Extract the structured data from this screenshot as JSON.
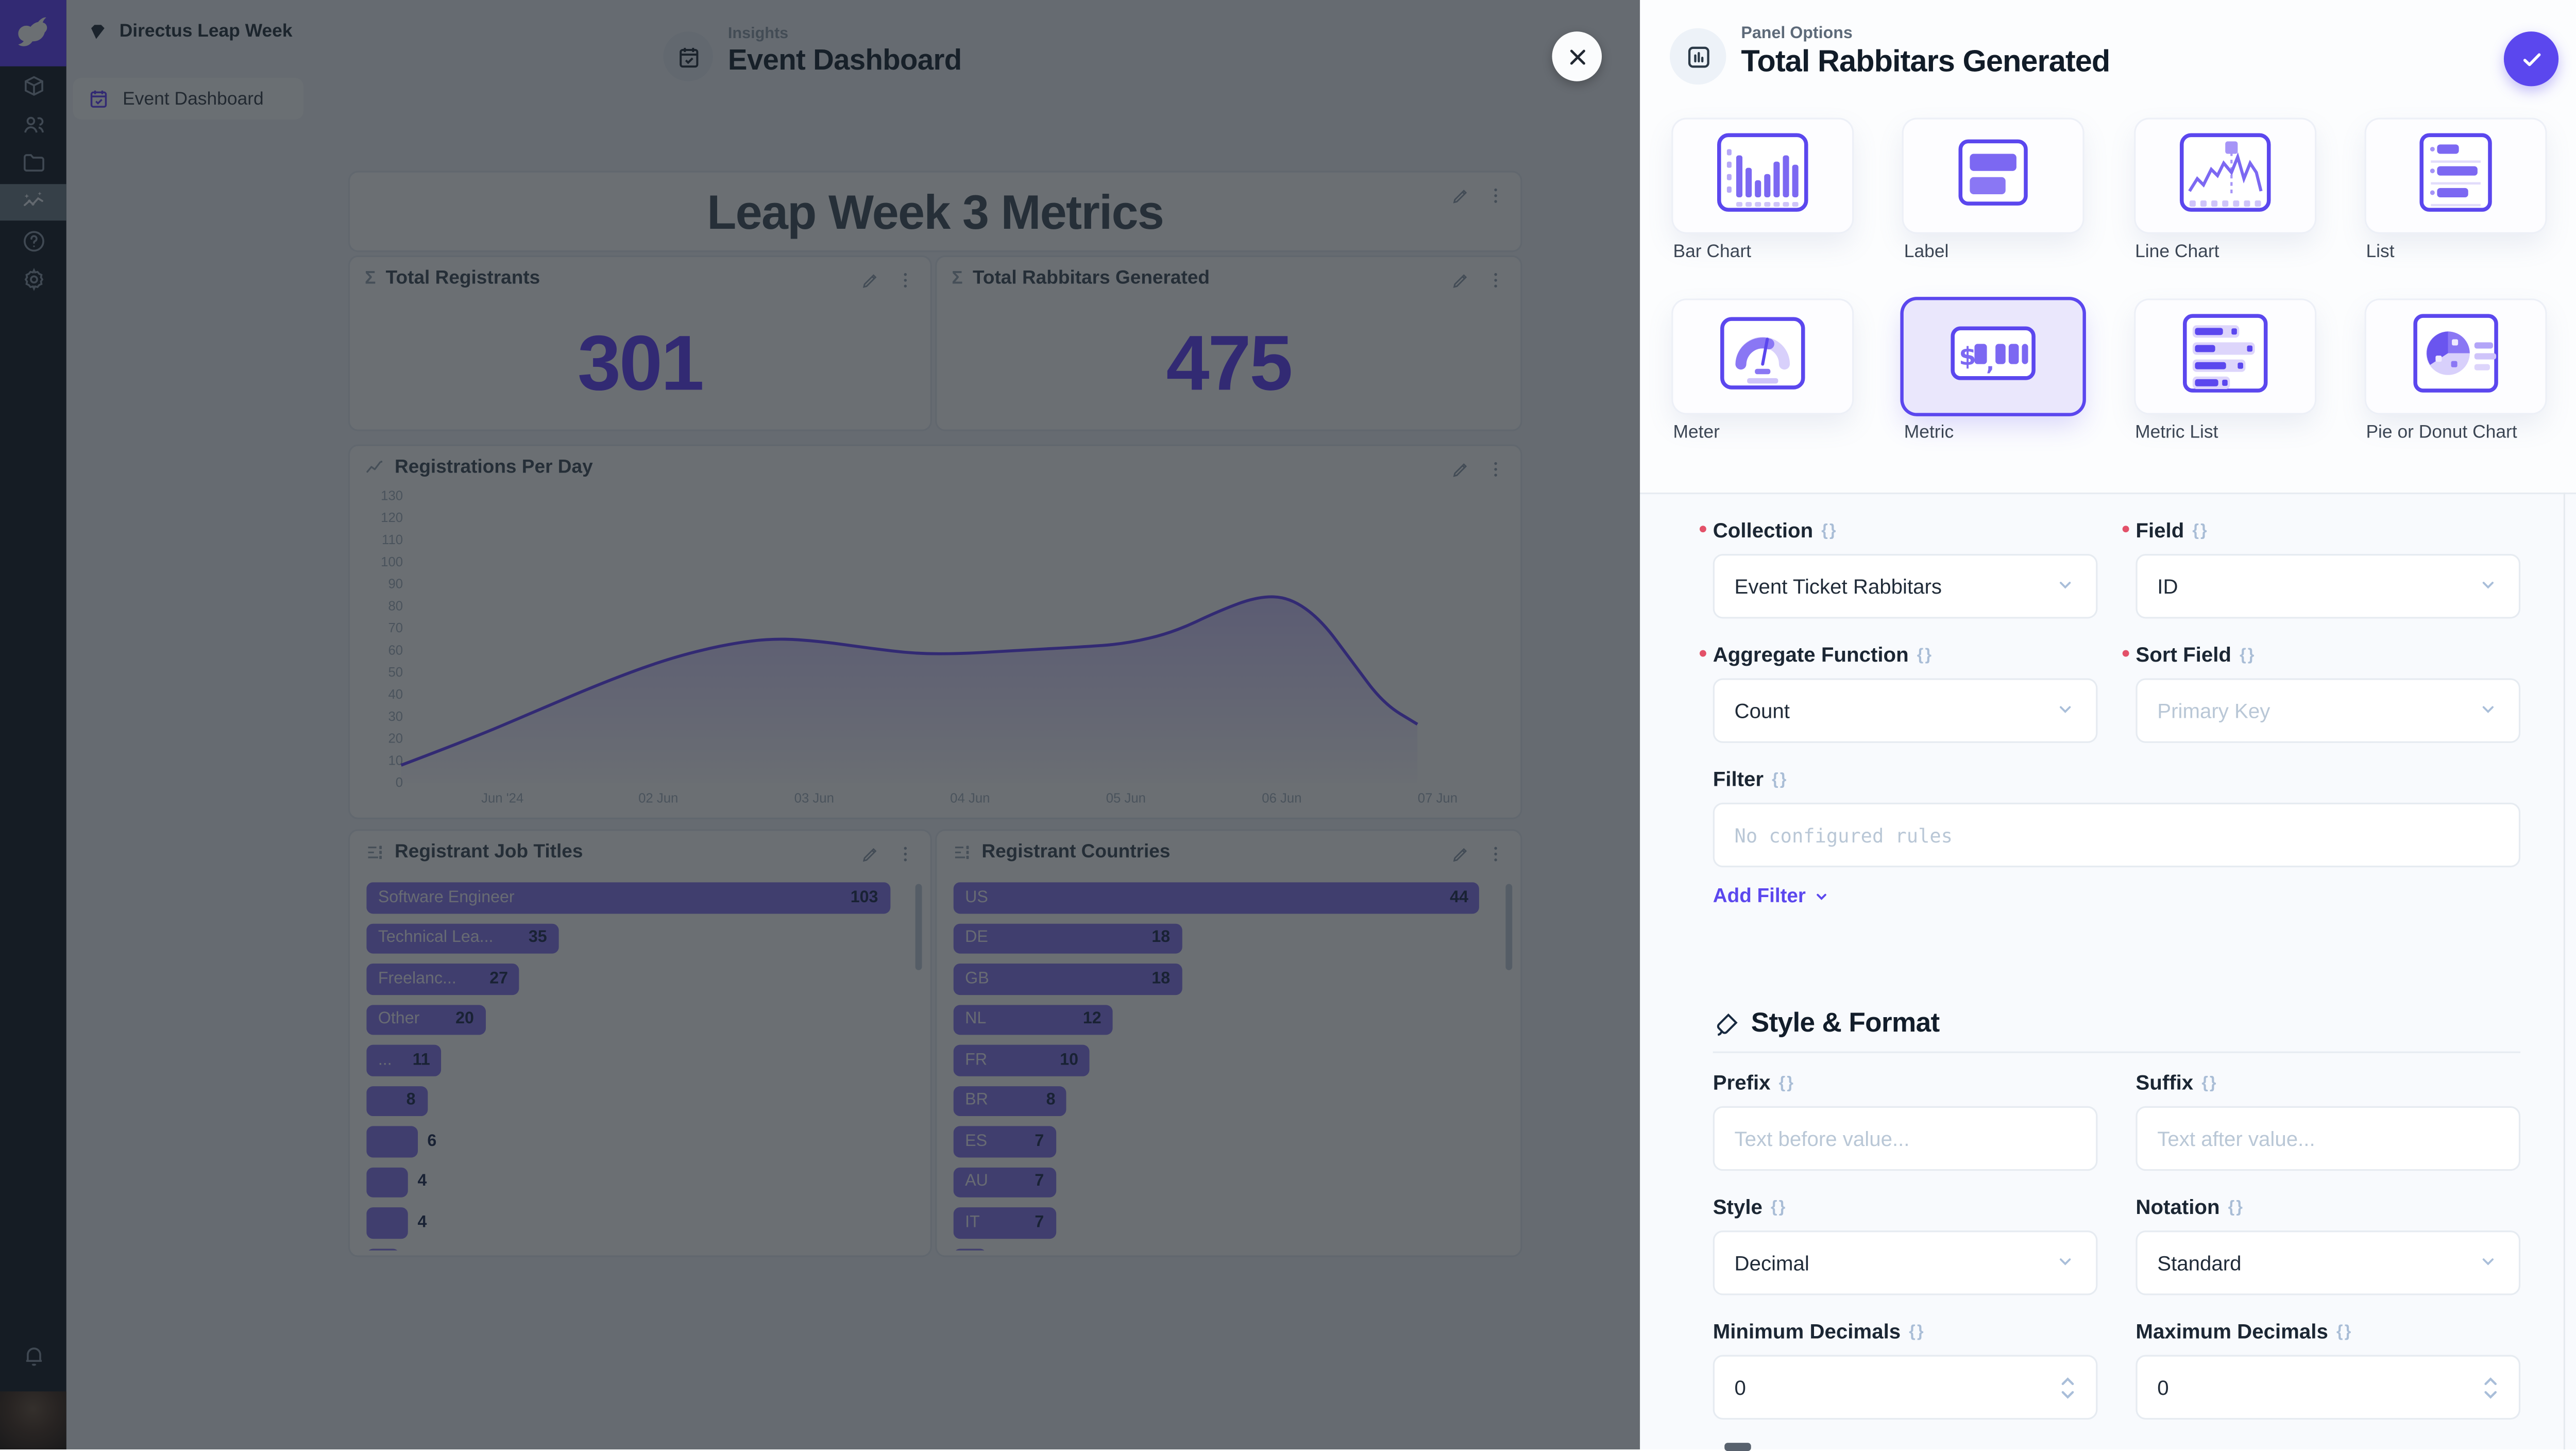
{
  "app": {
    "accent": "#5b47ee",
    "purple": "#6644ff"
  },
  "module_bar": {
    "icons": [
      "directus-logo",
      "content-box",
      "users",
      "files-folder",
      "insights-active",
      "help",
      "settings",
      "notifications-bell",
      "user-avatar"
    ]
  },
  "sidebar": {
    "project_name": "Directus Leap Week",
    "items": [
      {
        "label": "Event Dashboard",
        "active": true
      }
    ]
  },
  "header": {
    "breadcrumb": "Insights",
    "title": "Event Dashboard"
  },
  "dashboard": {
    "label_panel": {
      "title": "Leap Week 3 Metrics"
    },
    "metrics": [
      {
        "title": "Total Registrants",
        "value": "301"
      },
      {
        "title": "Total Rabbitars Generated",
        "value": "475"
      }
    ],
    "chart_panel": {
      "title": "Registrations Per Day"
    },
    "lists": [
      {
        "title": "Registrant Job Titles",
        "rows": [
          {
            "label": "Software Engineer",
            "value": 103
          },
          {
            "label": "Technical Lea...",
            "value": 35
          },
          {
            "label": "Freelanc...",
            "value": 27
          },
          {
            "label": "Other",
            "value": 20
          },
          {
            "label": "...",
            "value": 11
          },
          {
            "label": "",
            "value": 8
          },
          {
            "label": "",
            "value": 6
          },
          {
            "label": "",
            "value": 4
          },
          {
            "label": "",
            "value": 4
          }
        ],
        "clipped_row": true
      },
      {
        "title": "Registrant Countries",
        "rows": [
          {
            "label": "US",
            "value": 44
          },
          {
            "label": "DE",
            "value": 18
          },
          {
            "label": "GB",
            "value": 18
          },
          {
            "label": "NL",
            "value": 12
          },
          {
            "label": "FR",
            "value": 10
          },
          {
            "label": "BR",
            "value": 8
          },
          {
            "label": "ES",
            "value": 7
          },
          {
            "label": "AU",
            "value": 7
          },
          {
            "label": "IT",
            "value": 7
          }
        ],
        "clipped_row": true
      }
    ]
  },
  "chart_data": {
    "type": "area",
    "title": "Registrations Per Day",
    "x_ticks": [
      "Jun '24",
      "02 Jun",
      "03 Jun",
      "04 Jun",
      "05 Jun",
      "06 Jun",
      "07 Jun"
    ],
    "y_ticks": [
      0,
      10,
      20,
      30,
      40,
      50,
      60,
      70,
      80,
      90,
      100,
      110,
      120,
      130
    ],
    "ylim": [
      0,
      130
    ],
    "grid": false,
    "legend": false,
    "line_color": "#6644ff",
    "series": [
      {
        "name": "Registrations",
        "points": [
          [
            0.35,
            8
          ],
          [
            0.8,
            20
          ],
          [
            1.2,
            32
          ],
          [
            1.7,
            47
          ],
          [
            2.1,
            57
          ],
          [
            2.45,
            63
          ],
          [
            2.75,
            65.5
          ],
          [
            3.05,
            64
          ],
          [
            3.35,
            61
          ],
          [
            3.65,
            58.5
          ],
          [
            3.95,
            58.5
          ],
          [
            4.3,
            60
          ],
          [
            4.7,
            61.5
          ],
          [
            5.0,
            63
          ],
          [
            5.3,
            68
          ],
          [
            5.6,
            78
          ],
          [
            5.85,
            84.5
          ],
          [
            6.05,
            84
          ],
          [
            6.25,
            74
          ],
          [
            6.45,
            55
          ],
          [
            6.65,
            36
          ],
          [
            6.87,
            26.5
          ]
        ]
      }
    ]
  },
  "overlay": {
    "close_label": "close"
  },
  "drawer": {
    "kicker": "Panel Options",
    "title": "Total Rabbitars Generated",
    "types": [
      {
        "label": "Bar Chart",
        "icon": "bar-chart",
        "selected": false
      },
      {
        "label": "Label",
        "icon": "label",
        "selected": false
      },
      {
        "label": "Line Chart",
        "icon": "line-chart",
        "selected": false
      },
      {
        "label": "List",
        "icon": "list",
        "selected": false
      },
      {
        "label": "Meter",
        "icon": "meter",
        "selected": false
      },
      {
        "label": "Metric",
        "icon": "metric",
        "selected": true
      },
      {
        "label": "Metric List",
        "icon": "metric-list",
        "selected": false
      },
      {
        "label": "Pie or Donut Chart",
        "icon": "pie",
        "selected": false
      }
    ],
    "fields": {
      "collection": {
        "label": "Collection",
        "value": "Event Ticket Rabbitars",
        "required": true
      },
      "field": {
        "label": "Field",
        "value": "ID",
        "required": true
      },
      "aggregate": {
        "label": "Aggregate Function",
        "value": "Count",
        "required": true
      },
      "sort": {
        "label": "Sort Field",
        "placeholder": "Primary Key",
        "required": true
      },
      "filter": {
        "label": "Filter",
        "placeholder": "No configured rules",
        "add_label": "Add Filter"
      },
      "style_format_heading": "Style & Format",
      "prefix": {
        "label": "Prefix",
        "placeholder": "Text before value..."
      },
      "suffix": {
        "label": "Suffix",
        "placeholder": "Text after value..."
      },
      "style": {
        "label": "Style",
        "value": "Decimal"
      },
      "notation": {
        "label": "Notation",
        "value": "Standard"
      },
      "min_decimals": {
        "label": "Minimum Decimals",
        "value": "0"
      },
      "max_decimals": {
        "label": "Maximum Decimals",
        "value": "0"
      }
    }
  }
}
